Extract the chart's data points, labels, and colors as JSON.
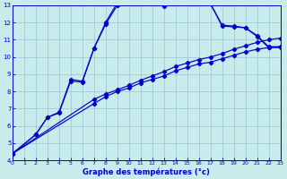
{
  "title": "Graphe des températures (°c)",
  "bg_color": "#c8ecec",
  "line_color": "#0000cc",
  "xlim": [
    0,
    23
  ],
  "ylim": [
    4,
    13
  ],
  "xticks": [
    0,
    1,
    2,
    3,
    4,
    5,
    6,
    7,
    8,
    9,
    10,
    11,
    12,
    13,
    14,
    15,
    16,
    17,
    18,
    19,
    20,
    21,
    22,
    23
  ],
  "yticks": [
    4,
    5,
    6,
    7,
    8,
    9,
    10,
    11,
    12,
    13
  ],
  "curve_main": {
    "x": [
      0,
      2,
      3,
      4,
      5,
      6,
      7,
      8,
      9,
      10,
      11,
      12,
      13,
      14,
      15,
      16,
      17,
      18,
      19,
      20,
      21,
      22,
      23
    ],
    "y": [
      4.4,
      5.5,
      6.5,
      6.8,
      8.7,
      8.6,
      10.5,
      12.0,
      13.15,
      13.3,
      13.4,
      13.45,
      13.05,
      13.35,
      13.5,
      13.5,
      13.1,
      11.85,
      11.8,
      11.7,
      11.25,
      10.6,
      10.6
    ]
  },
  "curve_secondary": {
    "x": [
      0,
      2,
      3,
      4,
      5,
      6,
      7,
      8,
      9,
      10,
      11,
      12,
      13,
      14,
      15,
      16,
      17,
      18,
      19,
      20,
      21,
      22,
      23
    ],
    "y": [
      4.4,
      5.5,
      6.5,
      6.75,
      8.6,
      8.55,
      10.5,
      11.9,
      13.0,
      13.25,
      13.35,
      13.4,
      12.95,
      13.3,
      13.45,
      13.45,
      13.1,
      11.8,
      11.75,
      11.7,
      11.2,
      10.55,
      10.55
    ]
  },
  "curve_linear1": {
    "x": [
      0,
      7,
      8,
      9,
      10,
      11,
      12,
      13,
      14,
      15,
      16,
      17,
      18,
      19,
      20,
      21,
      22,
      23
    ],
    "y": [
      4.4,
      7.3,
      7.7,
      8.0,
      8.2,
      8.5,
      8.7,
      8.9,
      9.2,
      9.4,
      9.6,
      9.7,
      9.9,
      10.1,
      10.3,
      10.45,
      10.55,
      10.6
    ]
  },
  "curve_linear2": {
    "x": [
      0,
      7,
      8,
      9,
      10,
      11,
      12,
      13,
      14,
      15,
      16,
      17,
      18,
      19,
      20,
      21,
      22,
      23
    ],
    "y": [
      4.4,
      7.55,
      7.85,
      8.1,
      8.35,
      8.65,
      8.9,
      9.15,
      9.45,
      9.65,
      9.85,
      10.0,
      10.2,
      10.45,
      10.65,
      10.85,
      11.0,
      11.1
    ]
  }
}
